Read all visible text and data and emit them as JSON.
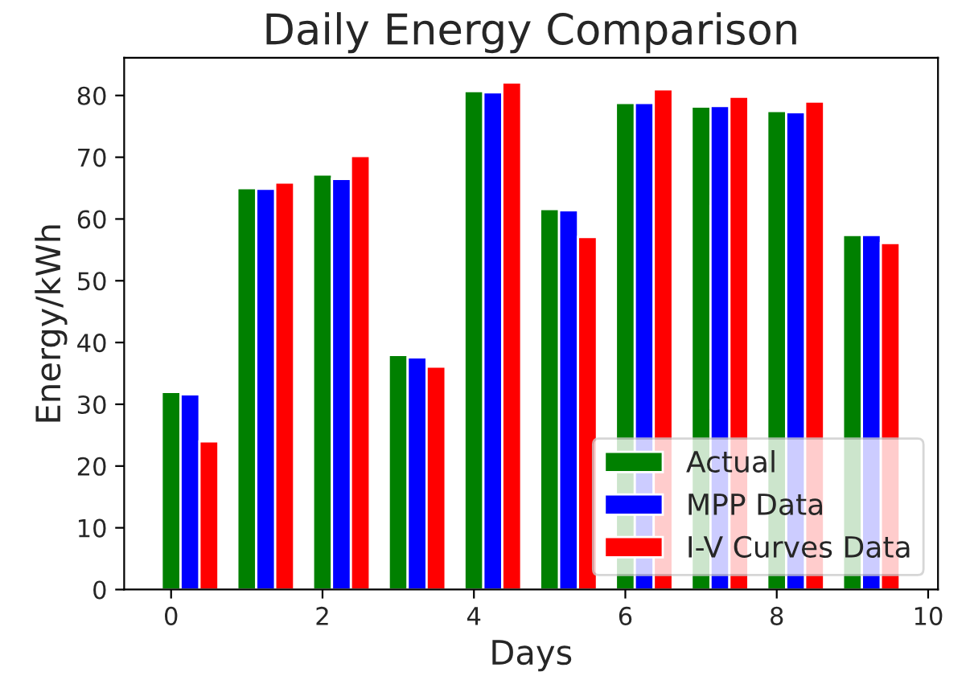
{
  "chart_data": {
    "type": "bar",
    "title": "Daily Energy Comparison",
    "xlabel": "Days",
    "ylabel": "Energy/kWh",
    "x": [
      0,
      1,
      2,
      3,
      4,
      5,
      6,
      7,
      8,
      9
    ],
    "series": [
      {
        "name": "Actual",
        "color": "#008000",
        "values": [
          32,
          65,
          67.2,
          38,
          80.7,
          61.6,
          78.8,
          78.2,
          77.5,
          57.4
        ]
      },
      {
        "name": "MPP Data",
        "color": "#0000ff",
        "values": [
          31.6,
          64.9,
          66.5,
          37.6,
          80.5,
          61.4,
          78.8,
          78.3,
          77.3,
          57.4
        ]
      },
      {
        "name": "I-V Curves Data",
        "color": "#ff0000",
        "values": [
          24,
          65.9,
          70.2,
          36.1,
          82.1,
          57.1,
          81,
          79.8,
          79,
          56.1
        ]
      }
    ],
    "xlim": [
      -0.62,
      10.13
    ],
    "xticks": [
      0,
      2,
      4,
      6,
      8,
      10
    ],
    "ylim": [
      0,
      86.1
    ],
    "yticks": [
      0,
      10,
      20,
      30,
      40,
      50,
      60,
      70,
      80
    ],
    "legend": "lower right",
    "grid": false
  }
}
